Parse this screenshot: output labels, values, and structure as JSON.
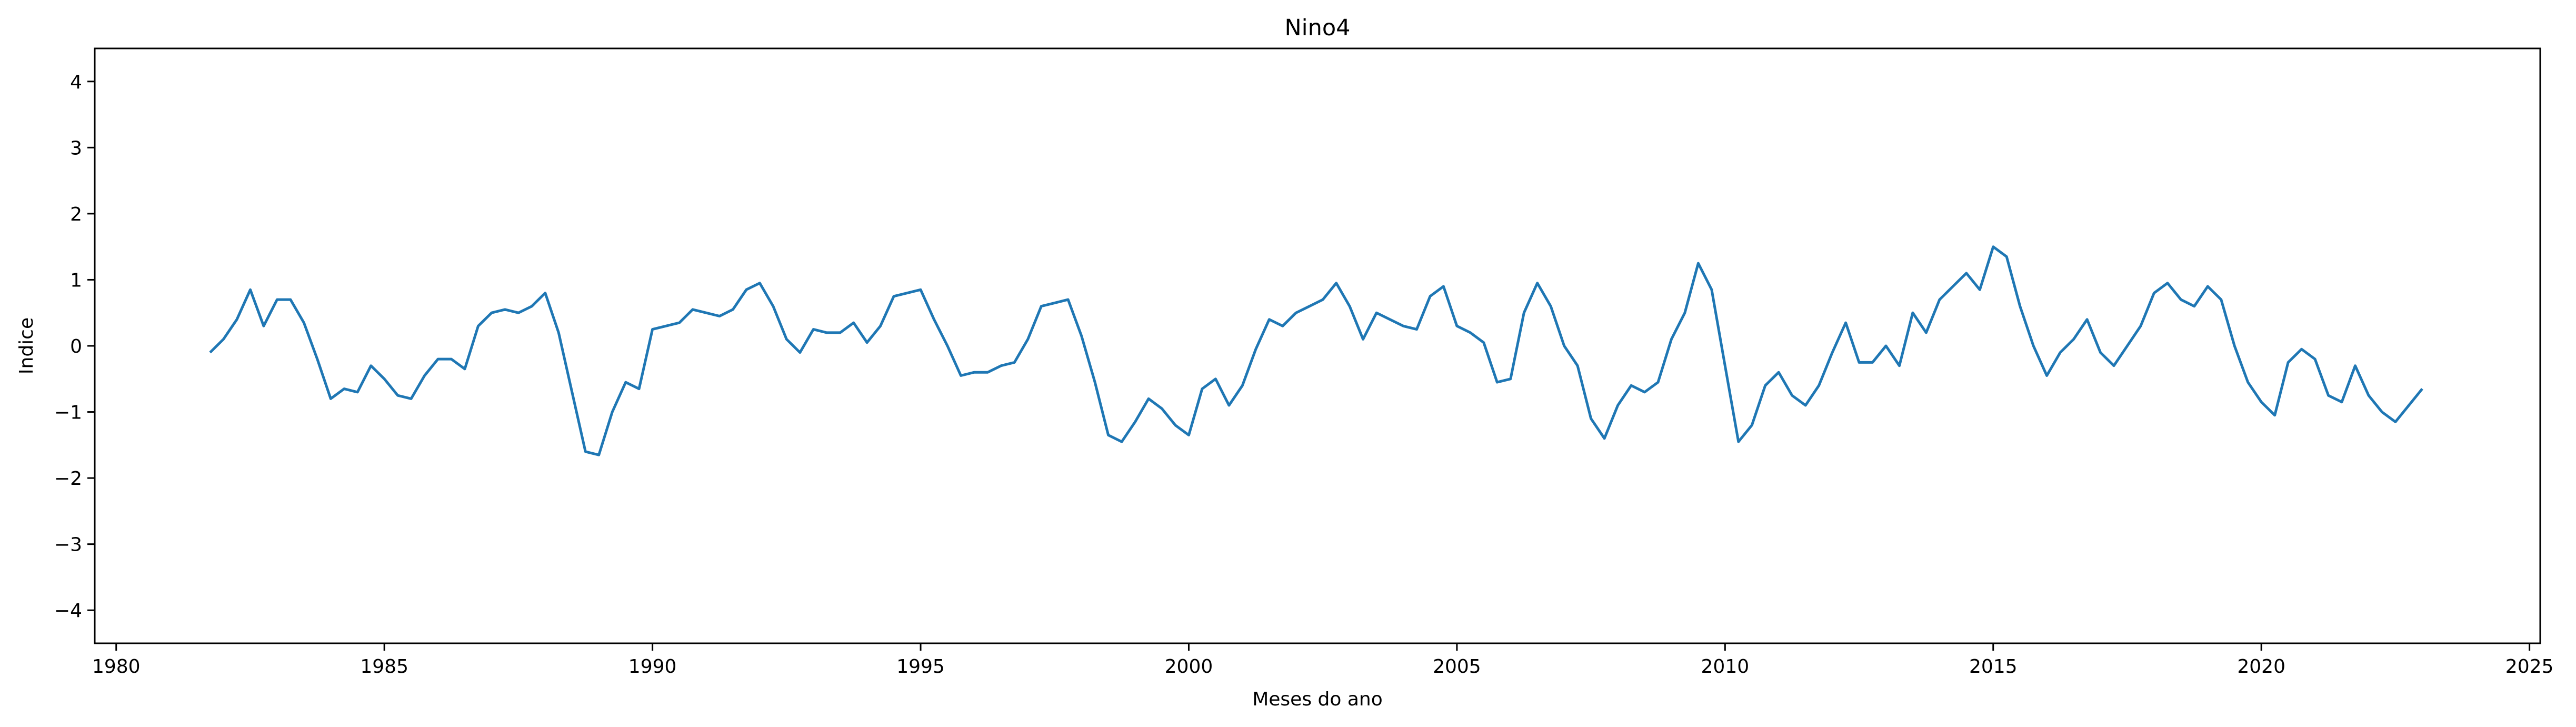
{
  "chart_data": {
    "type": "line",
    "title": "Nino4",
    "xlabel": "Meses do ano",
    "ylabel": "Indice",
    "xlim": [
      1979.6,
      2025.2
    ],
    "ylim": [
      -4.5,
      4.5
    ],
    "xticks": [
      1980,
      1985,
      1990,
      1995,
      2000,
      2005,
      2010,
      2015,
      2020,
      2025
    ],
    "yticks": [
      -4,
      -3,
      -2,
      -1,
      0,
      1,
      2,
      3,
      4
    ],
    "grid": false,
    "line_color": "#1f77b4",
    "series": [
      {
        "x": [
          1981.75,
          1982.0,
          1982.25,
          1982.5,
          1982.75,
          1983.0,
          1983.25,
          1983.5,
          1983.75,
          1984.0,
          1984.25,
          1984.5,
          1984.75,
          1985.0,
          1985.25,
          1985.5,
          1985.75,
          1986.0,
          1986.25,
          1986.5,
          1986.75,
          1987.0,
          1987.25,
          1987.5,
          1987.75,
          1988.0,
          1988.25,
          1988.5,
          1988.75,
          1989.0,
          1989.25,
          1989.5,
          1989.75,
          1990.0,
          1990.25,
          1990.5,
          1990.75,
          1991.0,
          1991.25,
          1991.5,
          1991.75,
          1992.0,
          1992.25,
          1992.5,
          1992.75,
          1993.0,
          1993.25,
          1993.5,
          1993.75,
          1994.0,
          1994.25,
          1994.5,
          1994.75,
          1995.0,
          1995.25,
          1995.5,
          1995.75,
          1996.0,
          1996.25,
          1996.5,
          1996.75,
          1997.0,
          1997.25,
          1997.5,
          1997.75,
          1998.0,
          1998.25,
          1998.5,
          1998.75,
          1999.0,
          1999.25,
          1999.5,
          1999.75,
          2000.0,
          2000.25,
          2000.5,
          2000.75,
          2001.0,
          2001.25,
          2001.5,
          2001.75,
          2002.0,
          2002.25,
          2002.5,
          2002.75,
          2003.0,
          2003.25,
          2003.5,
          2003.75,
          2004.0,
          2004.25,
          2004.5,
          2004.75,
          2005.0,
          2005.25,
          2005.5,
          2005.75,
          2006.0,
          2006.25,
          2006.5,
          2006.75,
          2007.0,
          2007.25,
          2007.5,
          2007.75,
          2008.0,
          2008.25,
          2008.5,
          2008.75,
          2009.0,
          2009.25,
          2009.5,
          2009.75,
          2010.0,
          2010.25,
          2010.5,
          2010.75,
          2011.0,
          2011.25,
          2011.5,
          2011.75,
          2012.0,
          2012.25,
          2012.5,
          2012.75,
          2013.0,
          2013.25,
          2013.5,
          2013.75,
          2014.0,
          2014.25,
          2014.5,
          2014.75,
          2015.0,
          2015.25,
          2015.5,
          2015.75,
          2016.0,
          2016.25,
          2016.5,
          2016.75,
          2017.0,
          2017.25,
          2017.5,
          2017.75,
          2018.0,
          2018.25,
          2018.5,
          2018.75,
          2019.0,
          2019.25,
          2019.5,
          2019.75,
          2020.0,
          2020.25,
          2020.5,
          2020.75,
          2021.0,
          2021.25,
          2021.5,
          2021.75,
          2022.0,
          2022.25,
          2022.5,
          2022.75,
          2023.0
        ],
        "values": [
          -0.1,
          0.1,
          0.4,
          0.85,
          0.3,
          0.7,
          0.7,
          0.35,
          -0.2,
          -0.8,
          -0.65,
          -0.7,
          -0.3,
          -0.5,
          -0.75,
          -0.8,
          -0.45,
          -0.2,
          -0.2,
          -0.35,
          0.3,
          0.5,
          0.55,
          0.5,
          0.6,
          0.8,
          0.2,
          -0.7,
          -1.6,
          -1.65,
          -1.0,
          -0.55,
          -0.65,
          0.25,
          0.3,
          0.35,
          0.55,
          0.5,
          0.45,
          0.55,
          0.85,
          0.95,
          0.6,
          0.1,
          -0.1,
          0.25,
          0.2,
          0.2,
          0.35,
          0.05,
          0.3,
          0.75,
          0.8,
          0.85,
          0.4,
          0.0,
          -0.45,
          -0.4,
          -0.4,
          -0.3,
          -0.25,
          0.1,
          0.6,
          0.65,
          0.7,
          0.15,
          -0.55,
          -1.35,
          -1.45,
          -1.15,
          -0.8,
          -0.95,
          -1.2,
          -1.35,
          -0.65,
          -0.5,
          -0.9,
          -0.6,
          -0.05,
          0.4,
          0.3,
          0.5,
          0.6,
          0.7,
          0.95,
          0.6,
          0.1,
          0.5,
          0.4,
          0.3,
          0.25,
          0.75,
          0.9,
          0.3,
          0.2,
          0.05,
          -0.55,
          -0.5,
          0.5,
          0.95,
          0.6,
          0.0,
          -0.3,
          -1.1,
          -1.4,
          -0.9,
          -0.6,
          -0.7,
          -0.55,
          0.1,
          0.5,
          1.25,
          0.85,
          -0.3,
          -1.45,
          -1.2,
          -0.6,
          -0.4,
          -0.75,
          -0.9,
          -0.6,
          -0.1,
          0.35,
          -0.25,
          -0.25,
          0.0,
          -0.3,
          0.5,
          0.2,
          0.7,
          0.9,
          1.1,
          0.85,
          1.5,
          1.35,
          0.6,
          0.0,
          -0.45,
          -0.1,
          0.1,
          0.4,
          -0.1,
          -0.3,
          0.0,
          0.3,
          0.8,
          0.95,
          0.7,
          0.6,
          0.9,
          0.7,
          0.0,
          -0.55,
          -0.85,
          -1.05,
          -0.25,
          -0.05,
          -0.2,
          -0.75,
          -0.85,
          -0.3,
          -0.75,
          -1.0,
          -1.15,
          -0.9,
          -0.65
        ]
      }
    ]
  }
}
